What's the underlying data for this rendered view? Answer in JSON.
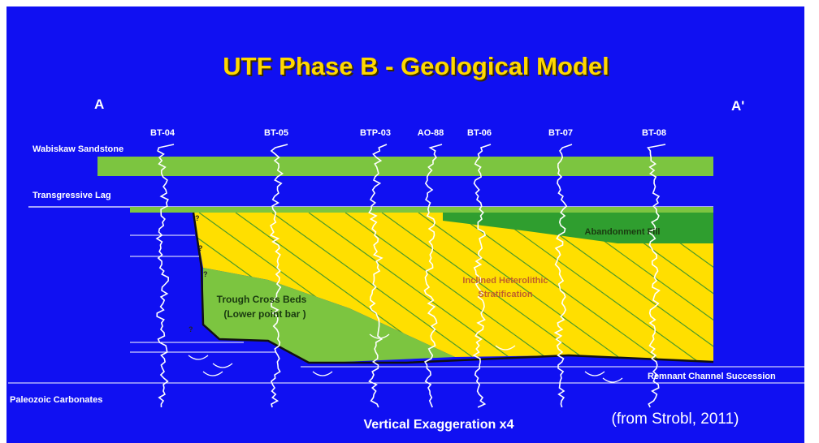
{
  "title": "UTF Phase B - Geological Model",
  "section_ends": {
    "left": "A",
    "right": "A'"
  },
  "wells": [
    {
      "label": "BT-04"
    },
    {
      "label": "BT-05"
    },
    {
      "label": "BTP-03"
    },
    {
      "label": "AO-88"
    },
    {
      "label": "BT-06"
    },
    {
      "label": "BT-07"
    },
    {
      "label": "BT-08"
    }
  ],
  "layers": {
    "wabiskaw": "Wabiskaw Sandstone",
    "lag": "Transgressive Lag",
    "abandonment": "Abandonment Fill",
    "ihs": [
      "Inclined Heterolithic",
      "Stratification"
    ],
    "trough": [
      "Trough Cross Beds",
      "(Lower point bar )"
    ],
    "remnant": "Remnant Channel Succession",
    "paleozoic": "Paleozoic Carbonates"
  },
  "question_marks": [
    "?",
    "?",
    "?",
    "?"
  ],
  "footer": {
    "exaggeration": "Vertical Exaggeration x4",
    "source": "(from Strobl, 2011)"
  }
}
